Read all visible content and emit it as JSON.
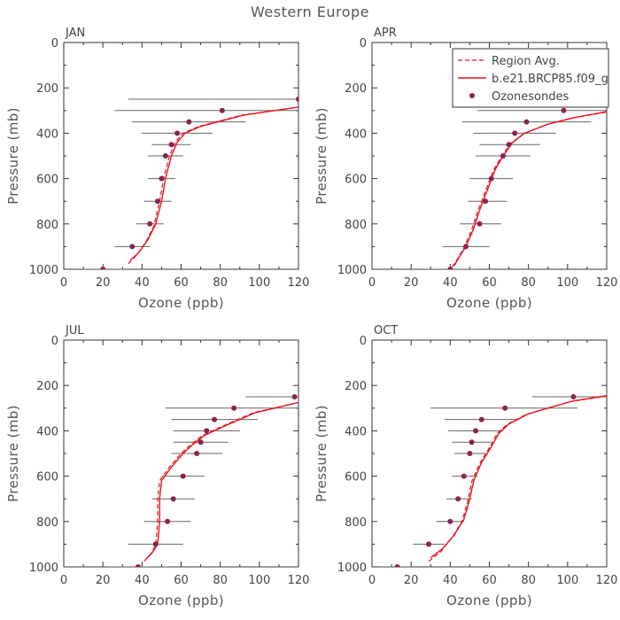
{
  "title": "Western Europe",
  "colors": {
    "model": "#e8141c",
    "region": "#e8141c",
    "sonde": "#8b2252",
    "errbar": "#666666",
    "axis": "#333333"
  },
  "legend": {
    "region_label": "Region Avg.",
    "model_label": "b.e21.BRCP85.f09_g",
    "sonde_label": "Ozonesondes"
  },
  "chart_data": [
    {
      "type": "line",
      "panel": "JAN",
      "xlabel": "Ozone (ppb)",
      "ylabel": "Pressure (mb)",
      "xlim": [
        0,
        120
      ],
      "ylim": [
        1000,
        0
      ],
      "xticks": [
        "0",
        "20",
        "40",
        "60",
        "80",
        "100",
        "120"
      ],
      "yticks": [
        "0",
        "200",
        "400",
        "600",
        "800",
        "1000"
      ],
      "series": [
        {
          "kind": "sondes",
          "points": [
            {
              "o3": 20,
              "p": 1000,
              "lo": 9,
              "hi": 31
            },
            {
              "o3": 35,
              "p": 900,
              "lo": 26,
              "hi": 44
            },
            {
              "o3": 44,
              "p": 800,
              "lo": 37,
              "hi": 51
            },
            {
              "o3": 48,
              "p": 700,
              "lo": 41,
              "hi": 55
            },
            {
              "o3": 50,
              "p": 600,
              "lo": 43,
              "hi": 57
            },
            {
              "o3": 52,
              "p": 500,
              "lo": 43,
              "hi": 61
            },
            {
              "o3": 55,
              "p": 450,
              "lo": 45,
              "hi": 65
            },
            {
              "o3": 58,
              "p": 400,
              "lo": 40,
              "hi": 76
            },
            {
              "o3": 64,
              "p": 350,
              "lo": 35,
              "hi": 93
            },
            {
              "o3": 81,
              "p": 300,
              "lo": 26,
              "hi": 136
            },
            {
              "o3": 120,
              "p": 250,
              "lo": 33,
              "hi": 120
            }
          ]
        },
        {
          "kind": "model",
          "points": [
            [
              34,
              960
            ],
            [
              38,
              930
            ],
            [
              43,
              870
            ],
            [
              47,
              800
            ],
            [
              50,
              700
            ],
            [
              52,
              600
            ],
            [
              55,
              500
            ],
            [
              58,
              440
            ],
            [
              62,
              400
            ],
            [
              70,
              370
            ],
            [
              92,
              320
            ],
            [
              120,
              285
            ]
          ]
        },
        {
          "kind": "region",
          "points": [
            [
              33,
              975
            ],
            [
              37,
              940
            ],
            [
              42,
              880
            ],
            [
              46,
              810
            ],
            [
              49,
              700
            ],
            [
              51,
              600
            ],
            [
              54,
              500
            ],
            [
              57,
              440
            ],
            [
              61,
              400
            ],
            [
              69,
              370
            ],
            [
              91,
              320
            ],
            [
              120,
              285
            ]
          ]
        }
      ]
    },
    {
      "type": "line",
      "panel": "APR",
      "xlabel": "Ozone (ppb)",
      "ylabel": "Pressure (mb)",
      "xlim": [
        0,
        120
      ],
      "ylim": [
        1000,
        0
      ],
      "xticks": [
        "0",
        "20",
        "40",
        "60",
        "80",
        "100",
        "120"
      ],
      "yticks": [
        "0",
        "200",
        "400",
        "600",
        "800",
        "1000"
      ],
      "series": [
        {
          "kind": "sondes",
          "points": [
            {
              "o3": 40,
              "p": 1000,
              "lo": 26,
              "hi": 54
            },
            {
              "o3": 48,
              "p": 900,
              "lo": 36,
              "hi": 60
            },
            {
              "o3": 55,
              "p": 800,
              "lo": 45,
              "hi": 66
            },
            {
              "o3": 58,
              "p": 700,
              "lo": 49,
              "hi": 69
            },
            {
              "o3": 61,
              "p": 600,
              "lo": 50,
              "hi": 72
            },
            {
              "o3": 67,
              "p": 500,
              "lo": 53,
              "hi": 81
            },
            {
              "o3": 70,
              "p": 450,
              "lo": 55,
              "hi": 86
            },
            {
              "o3": 73,
              "p": 400,
              "lo": 52,
              "hi": 94
            },
            {
              "o3": 79,
              "p": 350,
              "lo": 46,
              "hi": 112
            },
            {
              "o3": 98,
              "p": 300,
              "lo": 54,
              "hi": 120
            },
            {
              "o3": 120,
              "p": 250,
              "lo": 75,
              "hi": 120
            }
          ]
        },
        {
          "kind": "model",
          "points": [
            [
              42,
              985
            ],
            [
              45,
              940
            ],
            [
              48,
              900
            ],
            [
              52,
              820
            ],
            [
              55,
              740
            ],
            [
              59,
              650
            ],
            [
              63,
              560
            ],
            [
              67,
              500
            ],
            [
              72,
              440
            ],
            [
              78,
              400
            ],
            [
              90,
              360
            ],
            [
              104,
              330
            ],
            [
              120,
              305
            ]
          ]
        },
        {
          "kind": "region",
          "points": [
            [
              41,
              990
            ],
            [
              44,
              950
            ],
            [
              47,
              905
            ],
            [
              51,
              825
            ],
            [
              54,
              745
            ],
            [
              58,
              655
            ],
            [
              62,
              565
            ],
            [
              66,
              505
            ],
            [
              71,
              445
            ],
            [
              77,
              405
            ],
            [
              89,
              362
            ],
            [
              103,
              332
            ],
            [
              120,
              307
            ]
          ]
        }
      ]
    },
    {
      "type": "line",
      "panel": "JUL",
      "xlabel": "Ozone (ppb)",
      "ylabel": "Pressure (mb)",
      "xlim": [
        0,
        120
      ],
      "ylim": [
        1000,
        0
      ],
      "xticks": [
        "0",
        "20",
        "40",
        "60",
        "80",
        "100",
        "120"
      ],
      "yticks": [
        "0",
        "200",
        "400",
        "600",
        "800",
        "1000"
      ],
      "series": [
        {
          "kind": "sondes",
          "points": [
            {
              "o3": 38,
              "p": 1000,
              "lo": 22,
              "hi": 54
            },
            {
              "o3": 47,
              "p": 900,
              "lo": 33,
              "hi": 61
            },
            {
              "o3": 53,
              "p": 800,
              "lo": 41,
              "hi": 65
            },
            {
              "o3": 56,
              "p": 700,
              "lo": 45,
              "hi": 67
            },
            {
              "o3": 61,
              "p": 600,
              "lo": 50,
              "hi": 72
            },
            {
              "o3": 68,
              "p": 500,
              "lo": 55,
              "hi": 81
            },
            {
              "o3": 70,
              "p": 450,
              "lo": 56,
              "hi": 84
            },
            {
              "o3": 73,
              "p": 400,
              "lo": 56,
              "hi": 90
            },
            {
              "o3": 77,
              "p": 350,
              "lo": 55,
              "hi": 99
            },
            {
              "o3": 87,
              "p": 300,
              "lo": 52,
              "hi": 120
            },
            {
              "o3": 118,
              "p": 250,
              "lo": 93,
              "hi": 120
            }
          ]
        },
        {
          "kind": "model",
          "points": [
            [
              42,
              965
            ],
            [
              45,
              940
            ],
            [
              48,
              900
            ],
            [
              49,
              800
            ],
            [
              49,
              700
            ],
            [
              50,
              620
            ],
            [
              55,
              560
            ],
            [
              61,
              500
            ],
            [
              66,
              460
            ],
            [
              72,
              420
            ],
            [
              82,
              380
            ],
            [
              98,
              320
            ],
            [
              120,
              275
            ]
          ]
        },
        {
          "kind": "region",
          "points": [
            [
              41,
              975
            ],
            [
              44,
              950
            ],
            [
              47,
              905
            ],
            [
              48,
              800
            ],
            [
              48,
              700
            ],
            [
              49,
              620
            ],
            [
              54,
              560
            ],
            [
              60,
              500
            ],
            [
              65,
              460
            ],
            [
              71,
              420
            ],
            [
              81,
              380
            ],
            [
              97,
              320
            ],
            [
              120,
              275
            ]
          ]
        }
      ]
    },
    {
      "type": "line",
      "panel": "OCT",
      "xlabel": "Ozone (ppb)",
      "ylabel": "Pressure (mb)",
      "xlim": [
        0,
        120
      ],
      "ylim": [
        1000,
        0
      ],
      "xticks": [
        "0",
        "20",
        "40",
        "60",
        "80",
        "100",
        "120"
      ],
      "yticks": [
        "0",
        "200",
        "400",
        "600",
        "800",
        "1000"
      ],
      "series": [
        {
          "kind": "sondes",
          "points": [
            {
              "o3": 13,
              "p": 1000,
              "lo": 5,
              "hi": 21
            },
            {
              "o3": 29,
              "p": 900,
              "lo": 21,
              "hi": 37
            },
            {
              "o3": 40,
              "p": 800,
              "lo": 33,
              "hi": 47
            },
            {
              "o3": 44,
              "p": 700,
              "lo": 38,
              "hi": 51
            },
            {
              "o3": 47,
              "p": 600,
              "lo": 41,
              "hi": 54
            },
            {
              "o3": 50,
              "p": 500,
              "lo": 42,
              "hi": 58
            },
            {
              "o3": 51,
              "p": 450,
              "lo": 41,
              "hi": 61
            },
            {
              "o3": 53,
              "p": 400,
              "lo": 39,
              "hi": 67
            },
            {
              "o3": 56,
              "p": 350,
              "lo": 37,
              "hi": 75
            },
            {
              "o3": 68,
              "p": 300,
              "lo": 30,
              "hi": 105
            },
            {
              "o3": 103,
              "p": 250,
              "lo": 82,
              "hi": 120
            }
          ]
        },
        {
          "kind": "model",
          "points": [
            [
              30,
              960
            ],
            [
              36,
              920
            ],
            [
              42,
              860
            ],
            [
              47,
              790
            ],
            [
              50,
              700
            ],
            [
              52,
              620
            ],
            [
              56,
              540
            ],
            [
              61,
              470
            ],
            [
              65,
              410
            ],
            [
              70,
              370
            ],
            [
              80,
              325
            ],
            [
              102,
              270
            ],
            [
              120,
              245
            ]
          ]
        },
        {
          "kind": "region",
          "points": [
            [
              29,
              975
            ],
            [
              35,
              935
            ],
            [
              41,
              870
            ],
            [
              46,
              800
            ],
            [
              49,
              710
            ],
            [
              51,
              625
            ],
            [
              55,
              545
            ],
            [
              60,
              475
            ],
            [
              64,
              412
            ],
            [
              69,
              372
            ],
            [
              79,
              327
            ],
            [
              101,
              272
            ],
            [
              120,
              247
            ]
          ]
        }
      ]
    }
  ]
}
